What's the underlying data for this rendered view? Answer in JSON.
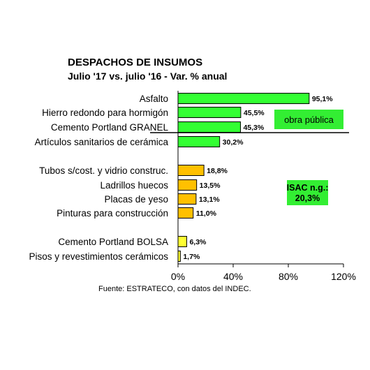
{
  "chart_data": {
    "type": "bar",
    "orientation": "horizontal",
    "title": "DESPACHOS DE INSUMOS",
    "subtitle": "Julio '17 vs. julio '16 - Var. % anual",
    "categories": [
      "Asfalto",
      "Hierro redondo para hormigón",
      "Cemento Portland GRANEL",
      "Artículos sanitarios de cerámica",
      "Tubos s/cost. y vidrio construc.",
      "Ladrillos huecos",
      "Placas de yeso",
      "Pinturas para construcción",
      "Cemento Portland BOLSA",
      "Pisos y revestimientos cerámicos"
    ],
    "values": [
      95.1,
      45.5,
      45.3,
      30.2,
      18.8,
      13.5,
      13.1,
      11.0,
      6.3,
      1.7
    ],
    "value_labels": [
      "95,1%",
      "45,5%",
      "45,3%",
      "30,2%",
      "18,8%",
      "13,5%",
      "13,1%",
      "11,0%",
      "6,3%",
      "1,7%"
    ],
    "bar_groups": [
      "green",
      "green",
      "green",
      "green",
      "orange",
      "orange",
      "orange",
      "orange",
      "yellow",
      "yellow"
    ],
    "xlim": [
      0,
      120
    ],
    "x_ticks": [
      0,
      40,
      80,
      120
    ],
    "x_tick_labels": [
      "0%",
      "40%",
      "80%",
      "120%"
    ],
    "grid": false,
    "source": "Fuente: ESTRATECO, con datos del INDEC.",
    "annotations": {
      "obra_publica": "obra pública",
      "isac_line1": "ISAC n.g.:",
      "isac_line2": "20,3%"
    }
  },
  "colors": {
    "green": "#33ff33",
    "orange": "#ffc000",
    "yellow": "#ffff33",
    "badge_green": "#33ee33",
    "stroke": "#000000"
  }
}
